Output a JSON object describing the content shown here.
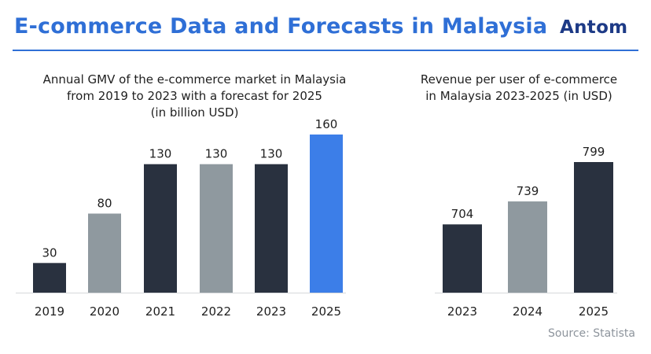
{
  "header": {
    "title": "E-commerce Data and Forecasts in Malaysia",
    "logo_text": "Antom"
  },
  "source": "Source: Statista",
  "colors": {
    "dark": "#29313f",
    "gray": "#8f999f",
    "blue": "#3c7ee8",
    "accent": "#2f6fd6",
    "brand": "#1d3a86"
  },
  "chart_data": [
    {
      "type": "bar",
      "title_lines": [
        "Annual GMV of the e-commerce market in Malaysia",
        "from 2019 to 2023 with a forecast for 2025",
        "(in billion USD)"
      ],
      "categories": [
        "2019",
        "2020",
        "2021",
        "2022",
        "2023",
        "2025"
      ],
      "values": [
        30,
        80,
        130,
        130,
        130,
        160
      ],
      "data_labels": [
        "30",
        "80",
        "130",
        "130",
        "130",
        "160"
      ],
      "bar_colors": [
        "dark",
        "gray",
        "dark",
        "gray",
        "dark",
        "blue"
      ],
      "ylim": [
        0,
        160
      ],
      "grid": false,
      "legend": "none"
    },
    {
      "type": "bar",
      "title_lines": [
        "Revenue per user of e-commerce",
        "in Malaysia 2023-2025 (in USD)"
      ],
      "categories": [
        "2023",
        "2024",
        "2025"
      ],
      "values": [
        704,
        739,
        799
      ],
      "data_labels": [
        "704",
        "739",
        "799"
      ],
      "bar_colors": [
        "dark",
        "gray",
        "dark"
      ],
      "ylim": [
        600,
        799
      ],
      "grid": false,
      "legend": "none"
    }
  ]
}
